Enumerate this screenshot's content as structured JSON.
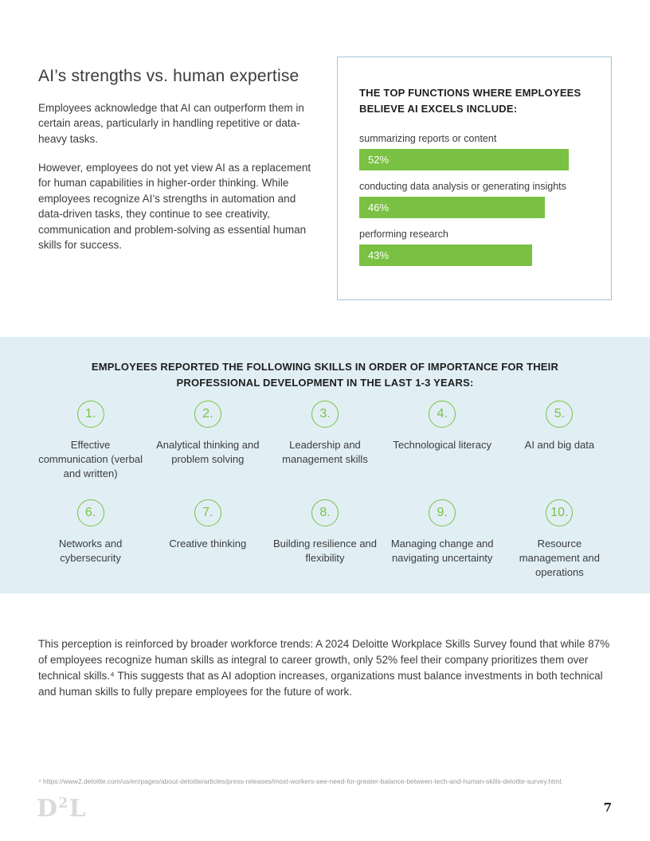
{
  "intro": {
    "title": "AI’s strengths vs. human expertise",
    "paragraphs": [
      "Employees acknowledge that AI can outperform them in certain areas, particularly in handling repetitive or data-heavy tasks.",
      "However, employees do not yet view AI as a replacement for human capabilities in higher-order thinking. While employees recognize AI’s strengths in automation and data-driven tasks, they continue to see creativity, communication and problem-solving as essential human skills for success."
    ]
  },
  "chart_data": {
    "type": "bar",
    "title": "THE TOP FUNCTIONS WHERE EMPLOYEES BELIEVE AI EXCELS INCLUDE:",
    "categories": [
      "summarizing reports or content",
      "conducting data analysis or generating insights",
      "performing research"
    ],
    "values": [
      52,
      46,
      43
    ],
    "value_labels": [
      "52%",
      "46%",
      "43%"
    ],
    "max_value": 52,
    "bar_color": "#7ac143"
  },
  "skills": {
    "heading": "EMPLOYEES REPORTED THE FOLLOWING SKILLS IN ORDER OF IMPORTANCE FOR THEIR PROFESSIONAL DEVELOPMENT IN THE LAST 1-3 YEARS:",
    "items": [
      {
        "number": "1.",
        "label": "Effective communication (verbal and written)"
      },
      {
        "number": "2.",
        "label": "Analytical thinking and problem solving"
      },
      {
        "number": "3.",
        "label": "Leadership and management skills"
      },
      {
        "number": "4.",
        "label": "Technological literacy"
      },
      {
        "number": "5.",
        "label": "AI and big data"
      },
      {
        "number": "6.",
        "label": "Networks and cybersecurity"
      },
      {
        "number": "7.",
        "label": "Creative thinking"
      },
      {
        "number": "8.",
        "label": "Building resilience and flexibility"
      },
      {
        "number": "9.",
        "label": "Managing change and navigating uncertainty"
      },
      {
        "number": "10.",
        "label": "Resource management and operations"
      }
    ],
    "circle_color": "#7ac143",
    "band_color": "#e1eff5"
  },
  "closing": {
    "text": "This perception is reinforced by broader workforce trends: A 2024 Deloitte Workplace Skills Survey found that while 87% of employees recognize human skills as integral to career growth, only 52% feel their company prioritizes them over technical skills.⁴ This suggests that as AI adoption increases, organizations must balance investments in both technical and human skills to fully prepare employees for the future of work."
  },
  "footnote": "⁴ https://www2.deloitte.com/us/en/pages/about-deloitte/articles/press-releases/most-workers-see-need-for-greater-balance-between-tech-and-human-skills-deloitte-survey.html.",
  "footer": {
    "logo_d": "D",
    "logo_2": "2",
    "logo_l": "L",
    "page_number": "7"
  }
}
